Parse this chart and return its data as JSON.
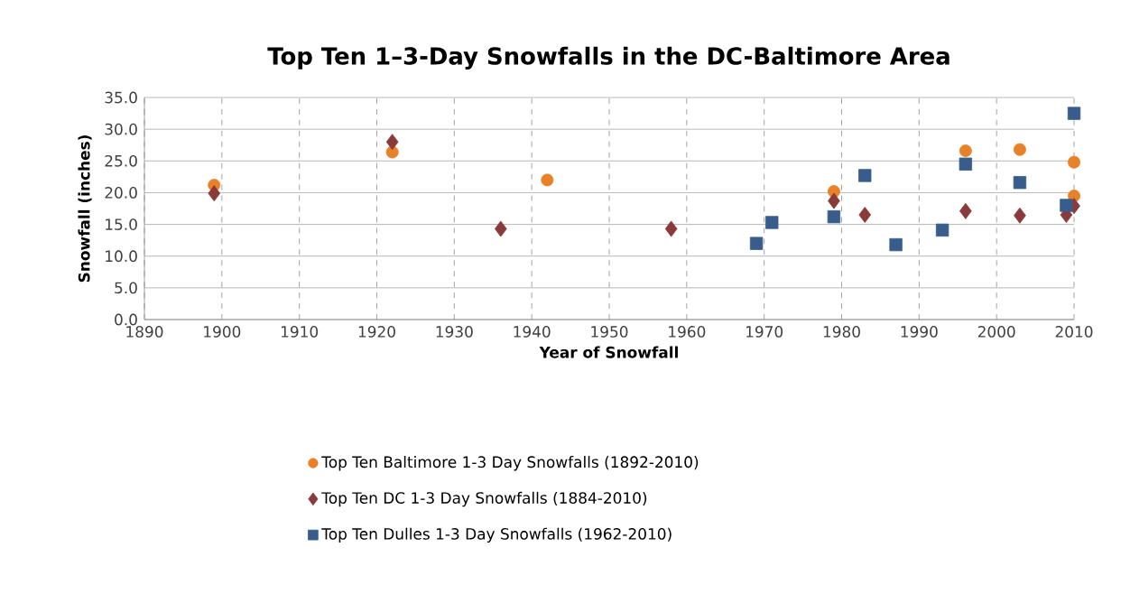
{
  "chart_data": {
    "type": "scatter",
    "title": "Top Ten 1–3-Day Snowfalls in the DC-Baltimore Area",
    "xlabel": "Year of Snowfall",
    "ylabel": "Snowfall (inches)",
    "xlim": [
      1890,
      2010
    ],
    "xticks": [
      1890,
      1900,
      1910,
      1920,
      1930,
      1940,
      1950,
      1960,
      1970,
      1980,
      1990,
      2000,
      2010
    ],
    "ylim": [
      0,
      35
    ],
    "yticks": [
      {
        "value": 0,
        "label": "0.0"
      },
      {
        "value": 5,
        "label": "5.0"
      },
      {
        "value": 10,
        "label": "10.0"
      },
      {
        "value": 15,
        "label": "15.0"
      },
      {
        "value": 20,
        "label": "20.0"
      },
      {
        "value": 25,
        "label": "25.0"
      },
      {
        "value": 30,
        "label": "30.0"
      },
      {
        "value": 35,
        "label": "35.0"
      }
    ],
    "grid": true,
    "legend": "bottom",
    "series": [
      {
        "name": "Top Ten Baltimore 1-3 Day Snowfalls (1892-2010)",
        "color": "#e8822a",
        "marker": "circle",
        "x": [
          1899,
          1922,
          1942,
          1979,
          1996,
          2003,
          2010,
          2010
        ],
        "values": [
          21.2,
          26.4,
          22.0,
          20.2,
          26.6,
          26.8,
          24.8,
          19.5
        ]
      },
      {
        "name": "Top Ten DC 1-3 Day Snowfalls (1884-2010)",
        "color": "#8b3a3a",
        "marker": "diamond",
        "x": [
          1899,
          1922,
          1936,
          1958,
          1979,
          1983,
          1996,
          2003,
          2009,
          2010
        ],
        "values": [
          19.9,
          28.0,
          14.3,
          14.3,
          18.7,
          16.5,
          17.1,
          16.4,
          16.5,
          17.9
        ]
      },
      {
        "name": "Top Ten Dulles 1-3 Day Snowfalls (1962-2010)",
        "color": "#385d8a",
        "marker": "square",
        "x": [
          1969,
          1971,
          1979,
          1983,
          1987,
          1993,
          1996,
          2003,
          2009,
          2010
        ],
        "values": [
          12.0,
          15.3,
          16.2,
          22.7,
          11.8,
          14.1,
          24.5,
          21.6,
          18.0,
          32.5
        ]
      }
    ]
  }
}
